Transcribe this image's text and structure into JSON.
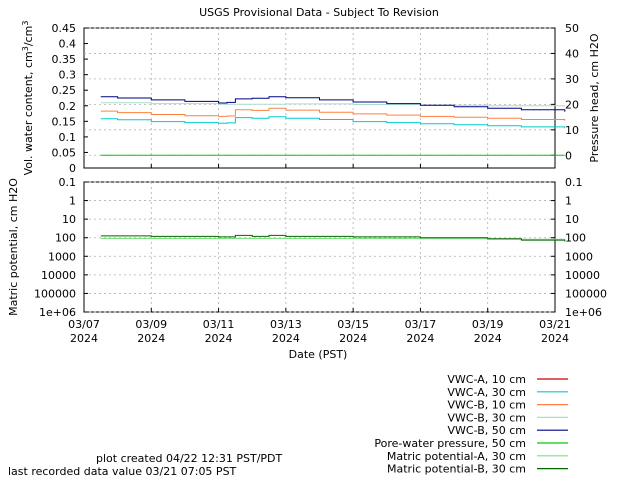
{
  "chart_data": [
    {
      "type": "line",
      "title": "USGS Provisional Data - Subject To Revision",
      "ylabel": "Vol. water content, cm³/cm³",
      "y2label": "Pressure head, cm H2O",
      "ylim": [
        0,
        0.45
      ],
      "y2lim": [
        -5,
        50
      ],
      "yticks": [
        "0",
        "0.05",
        "0.1",
        "0.15",
        "0.2",
        "0.25",
        "0.3",
        "0.35",
        "0.4",
        "0.45"
      ],
      "y2ticks": [
        "0",
        "10",
        "20",
        "30",
        "40",
        "50"
      ],
      "xlim": [
        "2024-03-07",
        "2024-03-21"
      ],
      "grid": true,
      "series": [
        {
          "name": "VWC-A, 10 cm",
          "color": "#cc0000",
          "x": [],
          "y": []
        },
        {
          "name": "VWC-A, 30 cm",
          "color": "#00cccc",
          "x": [
            "2024-03-07 12:00",
            "2024-03-08 00:00",
            "2024-03-09 00:00",
            "2024-03-10 00:00",
            "2024-03-11 00:00",
            "2024-03-11 06:00",
            "2024-03-11 12:00",
            "2024-03-12 00:00",
            "2024-03-12 12:00",
            "2024-03-13 00:00",
            "2024-03-14 00:00",
            "2024-03-15 00:00",
            "2024-03-16 00:00",
            "2024-03-17 00:00",
            "2024-03-18 00:00",
            "2024-03-19 00:00",
            "2024-03-20 00:00",
            "2024-03-21 07:00"
          ],
          "y": [
            0.158,
            0.155,
            0.149,
            0.146,
            0.144,
            0.145,
            0.162,
            0.16,
            0.165,
            0.16,
            0.156,
            0.149,
            0.146,
            0.142,
            0.139,
            0.136,
            0.132,
            0.128
          ]
        },
        {
          "name": "VWC-B, 10 cm",
          "color": "#ff8040",
          "x": [
            "2024-03-07 12:00",
            "2024-03-08 00:00",
            "2024-03-09 00:00",
            "2024-03-10 00:00",
            "2024-03-11 00:00",
            "2024-03-11 06:00",
            "2024-03-11 12:00",
            "2024-03-12 00:00",
            "2024-03-12 12:00",
            "2024-03-13 00:00",
            "2024-03-14 00:00",
            "2024-03-15 00:00",
            "2024-03-16 00:00",
            "2024-03-17 00:00",
            "2024-03-18 00:00",
            "2024-03-19 00:00",
            "2024-03-20 00:00",
            "2024-03-21 07:00"
          ],
          "y": [
            0.183,
            0.178,
            0.172,
            0.168,
            0.166,
            0.167,
            0.187,
            0.185,
            0.192,
            0.186,
            0.179,
            0.174,
            0.17,
            0.166,
            0.163,
            0.16,
            0.156,
            0.152
          ]
        },
        {
          "name": "VWC-B, 30 cm",
          "color": "#aaddcc",
          "x": [
            "2024-03-07 12:00",
            "2024-03-09 00:00",
            "2024-03-11 00:00",
            "2024-03-13 00:00",
            "2024-03-15 00:00",
            "2024-03-17 00:00",
            "2024-03-19 00:00",
            "2024-03-21 07:00"
          ],
          "y": [
            0.21,
            0.207,
            0.205,
            0.206,
            0.204,
            0.202,
            0.2,
            0.198
          ]
        },
        {
          "name": "VWC-B, 50 cm",
          "color": "#000080",
          "x": [
            "2024-03-07 12:00",
            "2024-03-08 00:00",
            "2024-03-09 00:00",
            "2024-03-10 00:00",
            "2024-03-11 00:00",
            "2024-03-11 06:00",
            "2024-03-11 12:00",
            "2024-03-12 00:00",
            "2024-03-12 12:00",
            "2024-03-13 00:00",
            "2024-03-14 00:00",
            "2024-03-15 00:00",
            "2024-03-16 00:00",
            "2024-03-17 00:00",
            "2024-03-18 00:00",
            "2024-03-19 00:00",
            "2024-03-20 00:00",
            "2024-03-21 07:00"
          ],
          "y": [
            0.229,
            0.225,
            0.219,
            0.214,
            0.209,
            0.211,
            0.222,
            0.224,
            0.229,
            0.226,
            0.219,
            0.212,
            0.207,
            0.202,
            0.197,
            0.192,
            0.187,
            0.181
          ]
        },
        {
          "name": "Pore-water pressure, 50 cm",
          "axis": "right",
          "color": "#00cc00",
          "x": [
            "2024-03-07 12:00",
            "2024-03-21 07:00"
          ],
          "y": [
            0,
            0
          ]
        }
      ]
    },
    {
      "type": "line",
      "ylabel": "Matric potential, cm H2O",
      "yscale": "log (inverted)",
      "ylim": [
        0.1,
        1000000
      ],
      "yticks": [
        "0.1",
        "1",
        "10",
        "100",
        "1000",
        "10000",
        "100000",
        "1e+06"
      ],
      "xlabel": "Date (PST)",
      "xlim": [
        "2024-03-07",
        "2024-03-21"
      ],
      "xticks": [
        {
          "line1": "03/07",
          "line2": "2024",
          "date": "2024-03-07"
        },
        {
          "line1": "03/09",
          "line2": "2024",
          "date": "2024-03-09"
        },
        {
          "line1": "03/11",
          "line2": "2024",
          "date": "2024-03-11"
        },
        {
          "line1": "03/13",
          "line2": "2024",
          "date": "2024-03-13"
        },
        {
          "line1": "03/15",
          "line2": "2024",
          "date": "2024-03-15"
        },
        {
          "line1": "03/17",
          "line2": "2024",
          "date": "2024-03-17"
        },
        {
          "line1": "03/19",
          "line2": "2024",
          "date": "2024-03-19"
        },
        {
          "line1": "03/21",
          "line2": "2024",
          "date": "2024-03-21"
        }
      ],
      "grid": true,
      "series": [
        {
          "name": "Matric potential-A, 30 cm",
          "color": "#80e080",
          "x": [
            "2024-03-07 12:00",
            "2024-03-09 00:00",
            "2024-03-11 00:00",
            "2024-03-13 00:00",
            "2024-03-15 00:00",
            "2024-03-17 00:00",
            "2024-03-19 00:00",
            "2024-03-21 07:00"
          ],
          "y": [
            110,
            110,
            110,
            110,
            110,
            115,
            120,
            130
          ]
        },
        {
          "name": "Matric potential-B, 30 cm",
          "color": "#006400",
          "x": [
            "2024-03-07 12:00",
            "2024-03-09 00:00",
            "2024-03-11 00:00",
            "2024-03-11 12:00",
            "2024-03-12 00:00",
            "2024-03-12 12:00",
            "2024-03-13 00:00",
            "2024-03-15 00:00",
            "2024-03-17 00:00",
            "2024-03-19 00:00",
            "2024-03-20 00:00",
            "2024-03-21 07:00"
          ],
          "y": [
            80,
            85,
            90,
            75,
            85,
            75,
            85,
            90,
            100,
            115,
            135,
            160
          ]
        }
      ]
    }
  ],
  "legend": [
    {
      "label": "VWC-A, 10 cm",
      "color": "#cc0000"
    },
    {
      "label": "VWC-A, 30 cm",
      "color": "#00cccc"
    },
    {
      "label": "VWC-B, 10 cm",
      "color": "#ff8040"
    },
    {
      "label": "VWC-B, 30 cm",
      "color": "#aaddcc"
    },
    {
      "label": "VWC-B, 50 cm",
      "color": "#000080"
    },
    {
      "label": "Pore-water pressure, 50 cm",
      "color": "#00cc00"
    },
    {
      "label": "Matric potential-A, 30 cm",
      "color": "#80e080"
    },
    {
      "label": "Matric potential-B, 30 cm",
      "color": "#006400"
    }
  ],
  "footer": {
    "created": "plot created 04/22 12:31 PST/PDT",
    "last_value": "last recorded data value 03/21 07:05 PST"
  }
}
